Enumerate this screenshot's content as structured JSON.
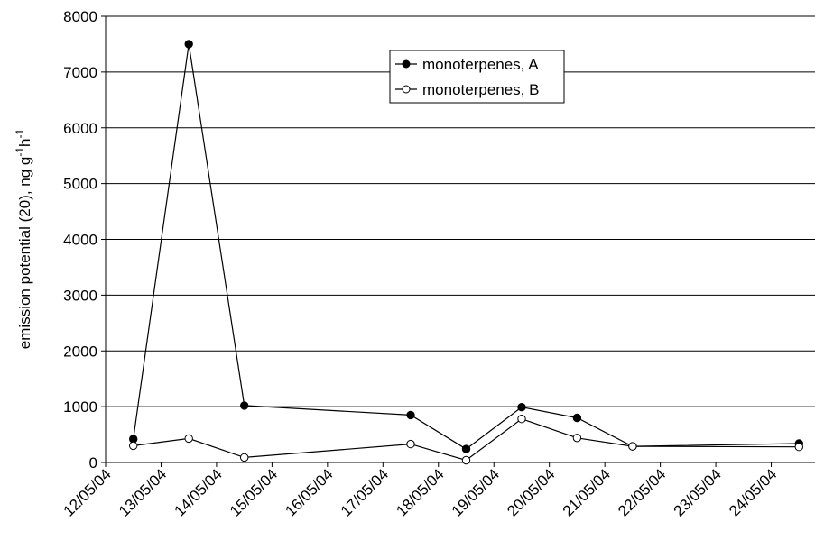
{
  "chart_data": {
    "type": "line",
    "title": "",
    "xlabel": "",
    "ylabel_main": "emission potential (20), ng g",
    "ylabel_sup1": "-1",
    "ylabel_mid": "h",
    "ylabel_sup2": "-1",
    "ylim": [
      0,
      8000
    ],
    "yticks": [
      "0",
      "1000",
      "2000",
      "3000",
      "4000",
      "5000",
      "6000",
      "7000",
      "8000"
    ],
    "xlim": [
      "12/05/04",
      "25/05/04"
    ],
    "xticks": [
      "12/05/04",
      "13/05/04",
      "14/05/04",
      "15/05/04",
      "16/05/04",
      "17/05/04",
      "18/05/04",
      "19/05/04",
      "20/05/04",
      "21/05/04",
      "22/05/04",
      "23/05/04",
      "24/05/04"
    ],
    "grid": "horizontal",
    "legend_position": "top-center",
    "series": [
      {
        "name": "monoterpenes, A",
        "marker": "filled-circle",
        "color": "#000000",
        "points": [
          {
            "x": "12/05/04 12:00",
            "y": 420
          },
          {
            "x": "13/05/04 12:00",
            "y": 7500
          },
          {
            "x": "14/05/04 12:00",
            "y": 1020
          },
          {
            "x": "17/05/04 12:00",
            "y": 850
          },
          {
            "x": "18/05/04 12:00",
            "y": 240
          },
          {
            "x": "19/05/04 12:00",
            "y": 990
          },
          {
            "x": "20/05/04 12:00",
            "y": 800
          },
          {
            "x": "21/05/04 12:00",
            "y": 290
          },
          {
            "x": "24/05/04 12:00",
            "y": 340
          }
        ]
      },
      {
        "name": "monoterpenes, B",
        "marker": "open-circle",
        "color": "#000000",
        "points": [
          {
            "x": "12/05/04 12:00",
            "y": 300
          },
          {
            "x": "13/05/04 12:00",
            "y": 430
          },
          {
            "x": "14/05/04 12:00",
            "y": 90
          },
          {
            "x": "17/05/04 12:00",
            "y": 330
          },
          {
            "x": "18/05/04 12:00",
            "y": 40
          },
          {
            "x": "19/05/04 12:00",
            "y": 780
          },
          {
            "x": "20/05/04 12:00",
            "y": 440
          },
          {
            "x": "21/05/04 12:00",
            "y": 290
          },
          {
            "x": "24/05/04 12:00",
            "y": 280
          }
        ]
      }
    ]
  }
}
